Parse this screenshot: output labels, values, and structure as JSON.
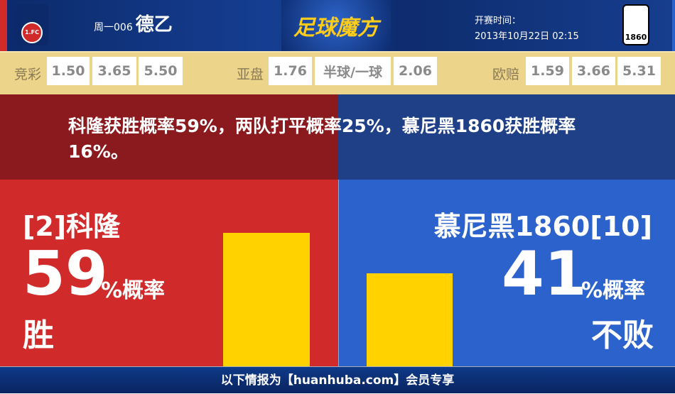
{
  "header": {
    "home_logo_text": "1.FC",
    "away_logo_text": "1860",
    "match_no": "周一006",
    "league": "德乙",
    "brand": "足球魔方",
    "time_label": "开赛时间：",
    "time_value": "2013年10月22日 02:15"
  },
  "odds": {
    "jingcai": {
      "label": "竞彩",
      "values": [
        "1.50",
        "3.65",
        "5.50"
      ]
    },
    "yapan": {
      "label": "亚盘",
      "values": [
        "1.76",
        "半球/一球",
        "2.06"
      ]
    },
    "oupei": {
      "label": "欧赔",
      "values": [
        "1.59",
        "3.66",
        "5.31"
      ]
    }
  },
  "summary": "科隆获胜概率59%，两队打平概率25%，慕尼黑1860获胜概率16%。",
  "home": {
    "name": "[2]科隆",
    "percent": "59",
    "percent_suffix": "%概率",
    "result": "胜",
    "bar_value": 59
  },
  "away": {
    "name": "慕尼黑1860[10]",
    "percent": "41",
    "percent_suffix": "%概率",
    "result": "不败",
    "bar_value": 41
  },
  "colors": {
    "home": "#d12a2a",
    "away": "#2b62cc",
    "bar": "#ffd200",
    "odds_bg": "#ecd48a"
  },
  "footer": "以下情报为【huanhuba.com】会员专享"
}
